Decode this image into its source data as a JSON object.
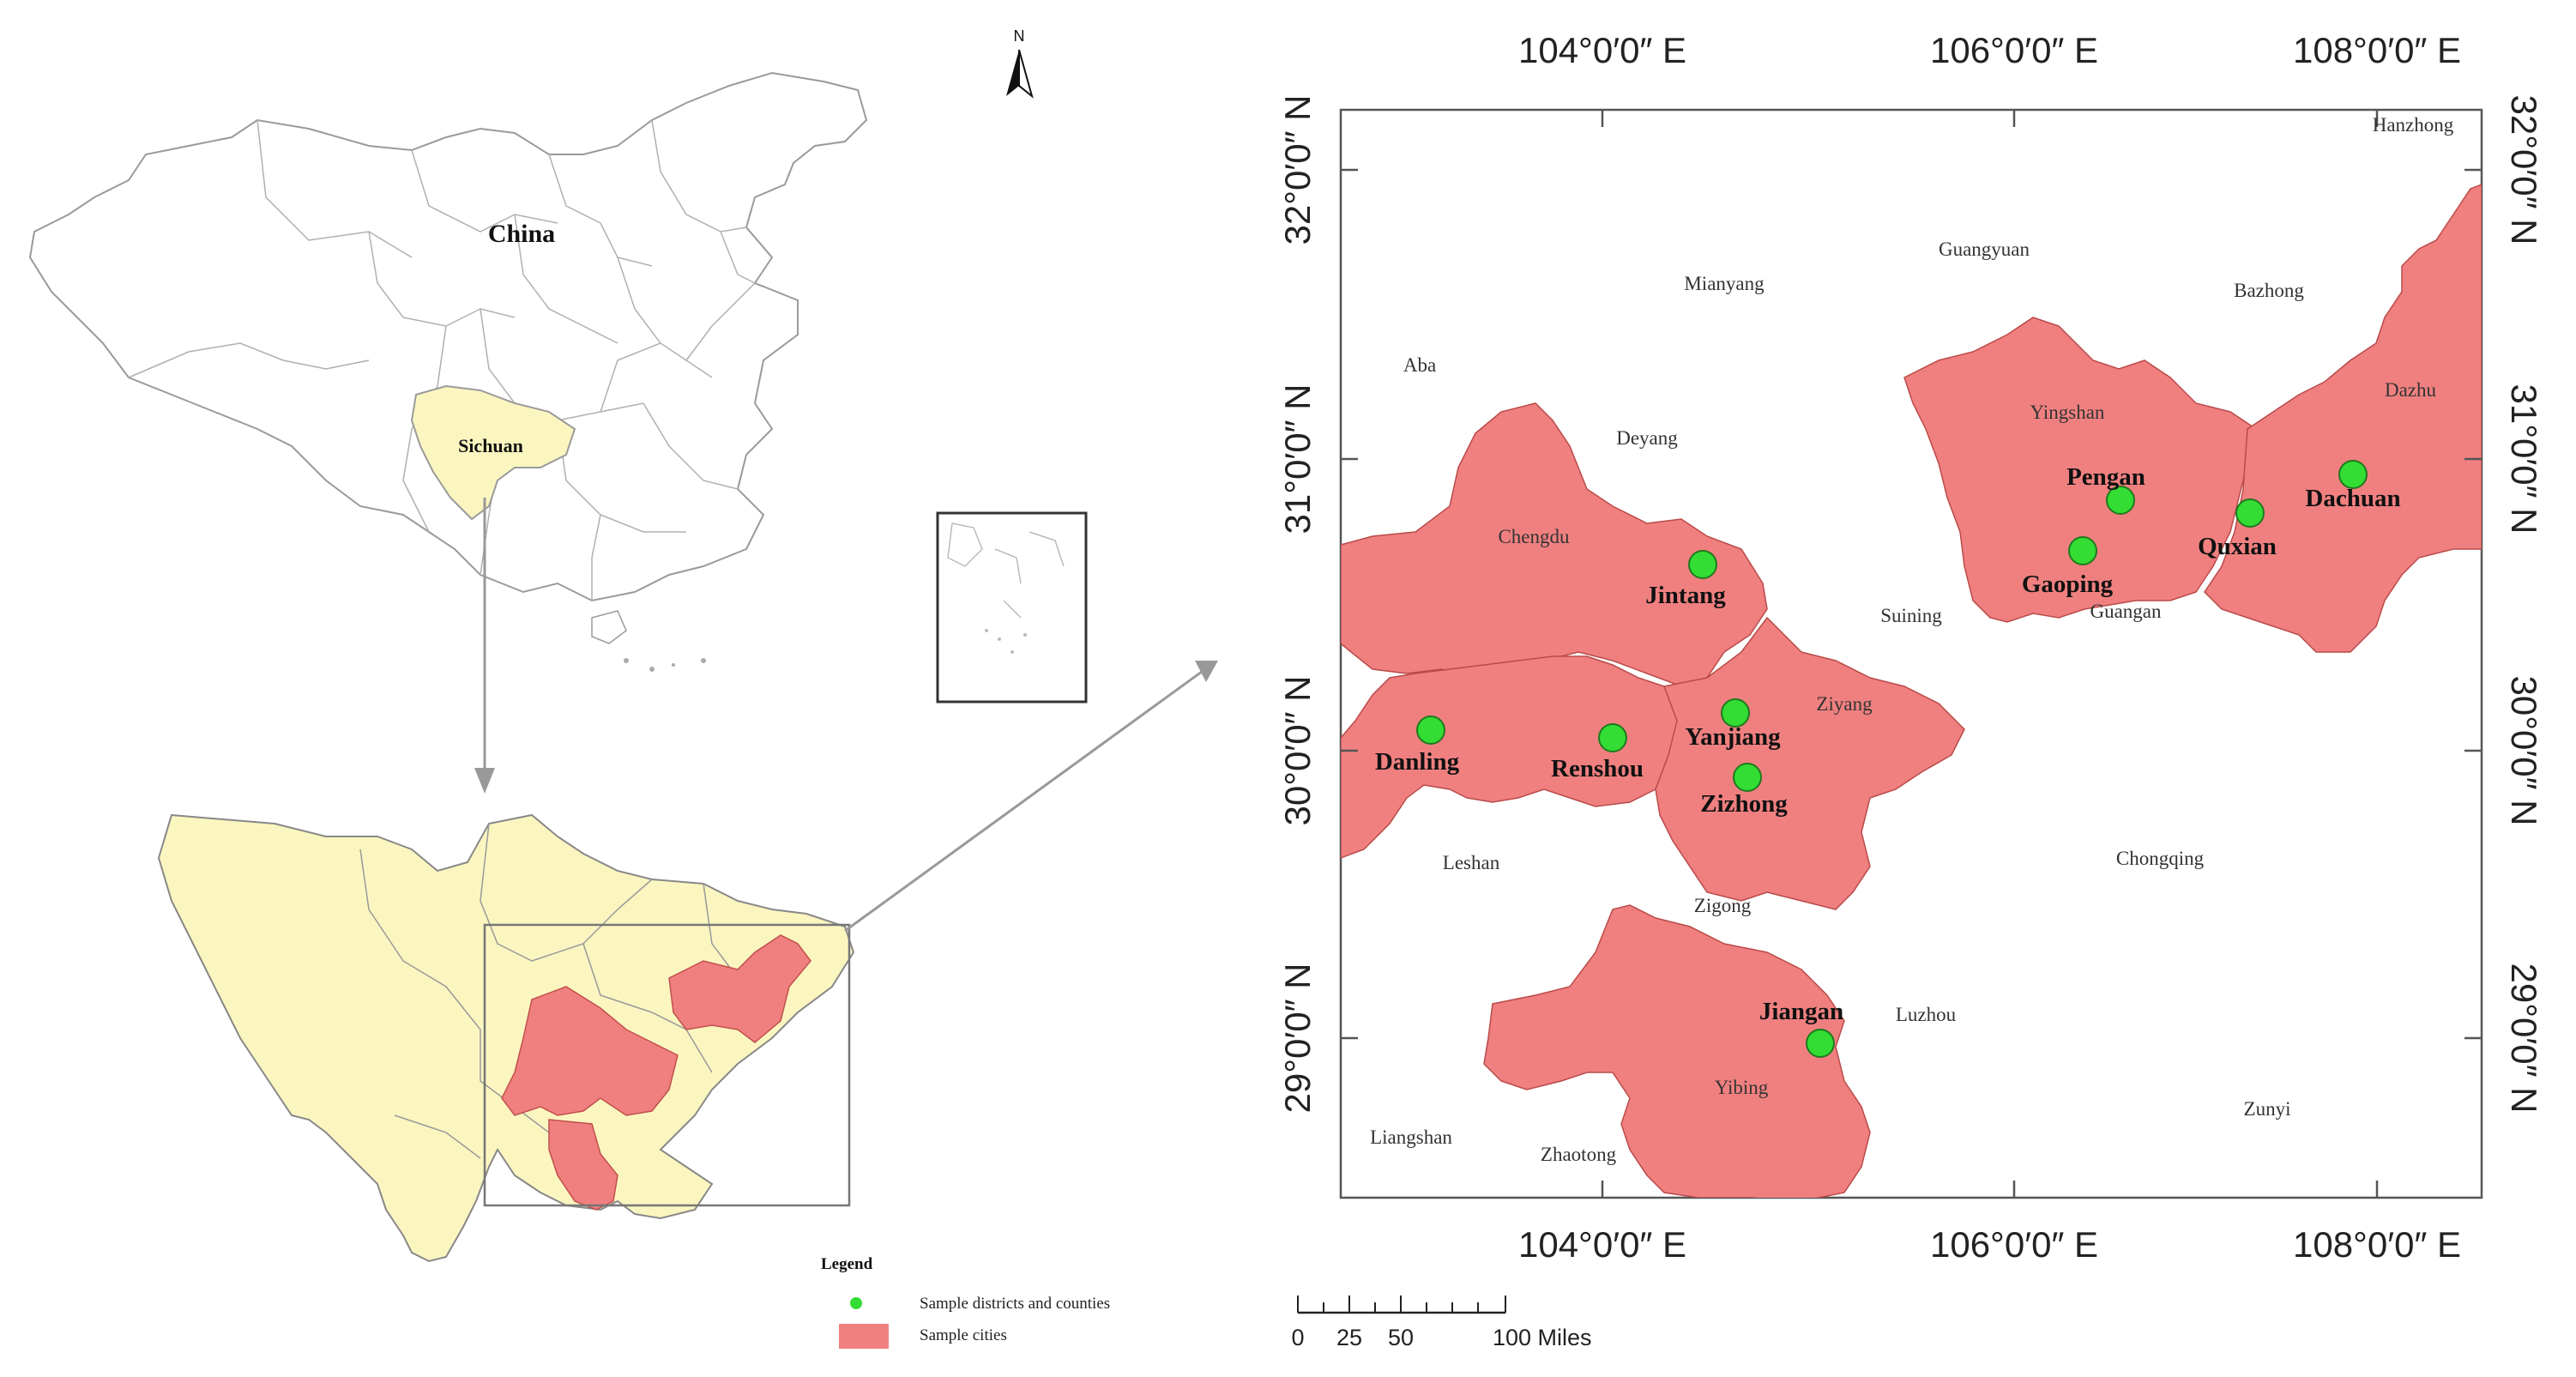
{
  "overview": {
    "country_label": "China",
    "province_label": "Sichuan",
    "north_label": "N"
  },
  "legend": {
    "title": "Legend",
    "items": [
      {
        "label": "Sample districts and counties",
        "color": "#33dd33"
      },
      {
        "label": "Sample cities",
        "color": "#f08080"
      }
    ]
  },
  "scale_bar": {
    "ticks": [
      "0",
      "25",
      "50",
      "100 Miles"
    ]
  },
  "detail_map": {
    "longitude_labels": [
      "104°0′0″ E",
      "106°0′0″ E",
      "108°0′0″ E"
    ],
    "latitude_labels": [
      "32°0′0″ N",
      "31°0′0″ N",
      "30°0′0″ N",
      "29°0′0″ N"
    ],
    "colors": {
      "sample_city_fill": "#f08080",
      "site_marker": "#33dd33",
      "province_fill": "#fbf6c0"
    },
    "cities": {
      "hanzhong": "Hanzhong",
      "guangyuan": "Guangyuan",
      "mianyang": "Mianyang",
      "bazhong": "Bazhong",
      "aba": "Aba",
      "yingshan": "Yingshan",
      "dazhu": "Dazhu",
      "deyang": "Deyang",
      "chengdu": "Chengdu",
      "suining": "Suining",
      "guangan": "Guangan",
      "ziyang": "Ziyang",
      "leshan": "Leshan",
      "chongqing": "Chongqing",
      "zigong": "Zigong",
      "luzhou": "Luzhou",
      "yibing": "Yibing",
      "zunyi": "Zunyi",
      "liangshan": "Liangshan",
      "zhaotong": "Zhaotong"
    },
    "sites": {
      "pengan": "Pengan",
      "dachuan": "Dachuan",
      "quxian": "Quxian",
      "gaoping": "Gaoping",
      "jintang": "Jintang",
      "danling": "Danling",
      "renshou": "Renshou",
      "yanjiang": "Yanjiang",
      "zizhong": "Zizhong",
      "jiangan": "Jiangan"
    }
  }
}
